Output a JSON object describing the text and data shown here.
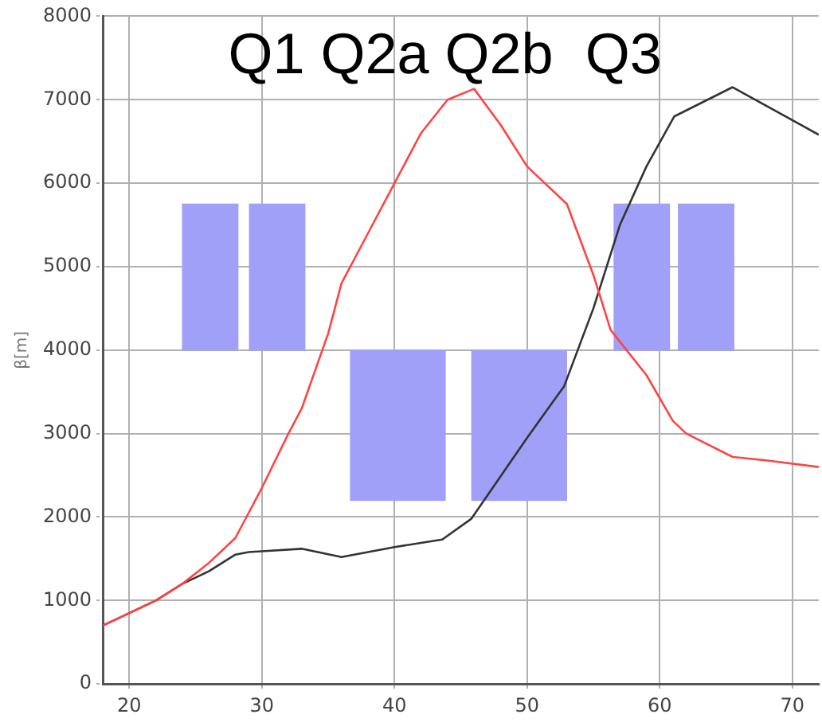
{
  "chart_data": {
    "type": "line",
    "ylabel": "β[m]",
    "xlim": [
      18,
      72
    ],
    "xticks": [
      20,
      30,
      40,
      50,
      60,
      70
    ],
    "ylim": [
      0,
      8000
    ],
    "yticks": [
      0,
      1000,
      2000,
      3000,
      4000,
      5000,
      6000,
      7000,
      8000
    ],
    "grid": true,
    "legend": false,
    "marker": "none",
    "line_style": "solid",
    "annotations": [
      "Q1 Q2a Q2b  Q3"
    ],
    "series": [
      {
        "type": "bar",
        "color": "#a0a0f8",
        "x": [
          26.1,
          31.15,
          58.65,
          63.5
        ],
        "base": [
          4000,
          4000,
          4000,
          4000
        ],
        "values": [
          1750,
          1750,
          1750,
          1750
        ]
      },
      {
        "type": "bar",
        "color": "#a0a0f8",
        "x": [
          40.25,
          49.4
        ],
        "base": [
          2200,
          2200
        ],
        "values": [
          1800,
          1800
        ]
      },
      {
        "color": "#ff4444",
        "x": [
          18,
          20,
          22,
          24,
          26,
          28,
          28.5,
          30,
          32,
          33,
          35,
          36,
          38,
          40,
          42,
          44,
          46,
          48,
          50,
          53,
          55,
          56.3,
          59,
          61,
          62,
          65.5,
          68,
          72
        ],
        "values": [
          700,
          850,
          1000,
          1200,
          1450,
          1750,
          1900,
          2350,
          3000,
          3300,
          4200,
          4800,
          5400,
          6000,
          6600,
          7000,
          7130,
          6700,
          6200,
          5750,
          4900,
          4240,
          3700,
          3150,
          3000,
          2720,
          2680,
          2600
        ]
      },
      {
        "color": "#333333",
        "x": [
          18,
          20,
          22,
          24,
          26,
          28,
          29,
          30,
          33,
          36,
          40,
          43.6,
          45.8,
          50,
          52.8,
          55,
          57,
          59,
          61.1,
          65.5,
          72
        ],
        "values": [
          700,
          850,
          1000,
          1200,
          1350,
          1550,
          1580,
          1590,
          1620,
          1520,
          1640,
          1730,
          1980,
          2950,
          3570,
          4500,
          5500,
          6200,
          6800,
          7150,
          6580
        ]
      }
    ]
  }
}
